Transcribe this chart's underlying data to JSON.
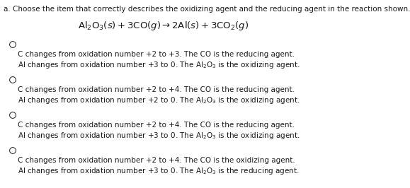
{
  "title": "a. Choose the item that correctly describes the oxidizing agent and the reducing agent in the reaction shown.",
  "equation": "$\\mathrm{Al_2O_3}(s) + 3\\mathrm{CO}(g) \\rightarrow 2\\mathrm{Al}(s) + 3\\mathrm{CO_2}(g)$",
  "options": [
    {
      "line1_plain": "C changes from oxidation number +2 to +3. The ",
      "line1_bold": "CO",
      "line1_end": " is the reducing agent.",
      "line2_plain": "Al changes from oxidation number +3 to 0. The ",
      "line2_chem": "$\\mathrm{Al_2O_3}$",
      "line2_end": " is the oxidizing agent."
    },
    {
      "line1_plain": "C changes from oxidation number +2 to +4. The ",
      "line1_bold": "CO",
      "line1_end": " is the reducing agent.",
      "line2_plain": "Al changes from oxidation number +2 to 0. The ",
      "line2_chem": "$\\mathrm{Al_2O_3}$",
      "line2_end": " is the oxidizing agent."
    },
    {
      "line1_plain": "C changes from oxidation number +2 to +4. The ",
      "line1_bold": "CO",
      "line1_end": " is the reducing agent.",
      "line2_plain": "Al changes from oxidation number +3 to 0. The ",
      "line2_chem": "$\\mathrm{Al_2O_3}$",
      "line2_end": " is the oxidizing agent."
    },
    {
      "line1_plain": "C changes from oxidation number +2 to +4. The ",
      "line1_bold": "CO",
      "line1_end": " is the oxidizing agent.",
      "line2_plain": "Al changes from oxidation number +3 to 0. The ",
      "line2_chem": "$\\mathrm{Al_2O_3}$",
      "line2_end": " is the reducing agent."
    }
  ],
  "bg_color": "#ffffff",
  "text_color": "#1a1a1a",
  "font_size": 7.5,
  "title_font_size": 7.5,
  "equation_font_size": 9.5,
  "figsize": [
    5.79,
    2.66
  ],
  "dpi": 100
}
